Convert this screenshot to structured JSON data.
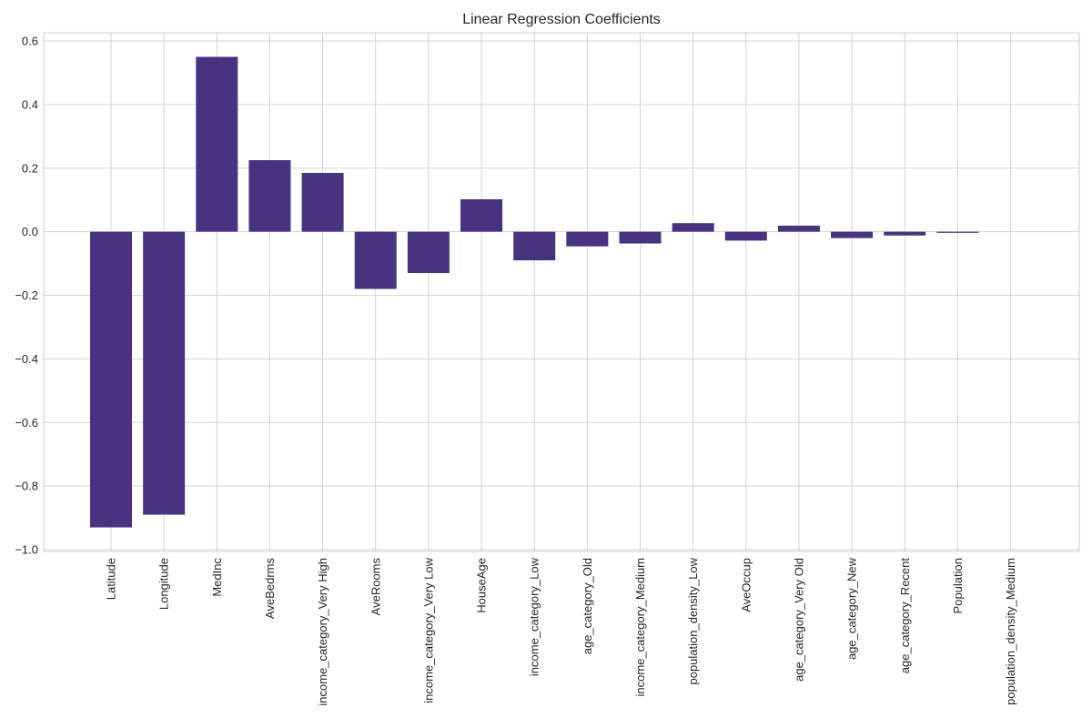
{
  "chart_data": {
    "type": "bar",
    "title": "Linear Regression Coefficients",
    "xlabel": "",
    "ylabel": "",
    "categories": [
      "Latitude",
      "Longitude",
      "MedInc",
      "AveBedrms",
      "income_category_Very High",
      "AveRooms",
      "income_category_Very Low",
      "HouseAge",
      "income_category_Low",
      "age_category_Old",
      "income_category_Medium",
      "population_density_Low",
      "AveOccup",
      "age_category_Very Old",
      "age_category_New",
      "age_category_Recent",
      "Population",
      "population_density_Medium"
    ],
    "values": [
      -0.93,
      -0.89,
      0.55,
      0.225,
      0.185,
      -0.18,
      -0.13,
      0.102,
      -0.09,
      -0.046,
      -0.037,
      0.027,
      -0.028,
      0.019,
      -0.02,
      -0.012,
      -0.002,
      0.0
    ],
    "ylim": [
      -1.0,
      0.6
    ],
    "yticks": [
      0.6,
      0.4,
      0.2,
      0.0,
      -0.2,
      -0.4,
      -0.6,
      -0.8,
      -1.0
    ],
    "ytick_labels": [
      "0.6",
      "0.4",
      "0.2",
      "0.0",
      "−0.2",
      "−0.4",
      "−0.6",
      "−0.8",
      "−1.0"
    ],
    "grid": true,
    "bar_color": "#483381"
  }
}
